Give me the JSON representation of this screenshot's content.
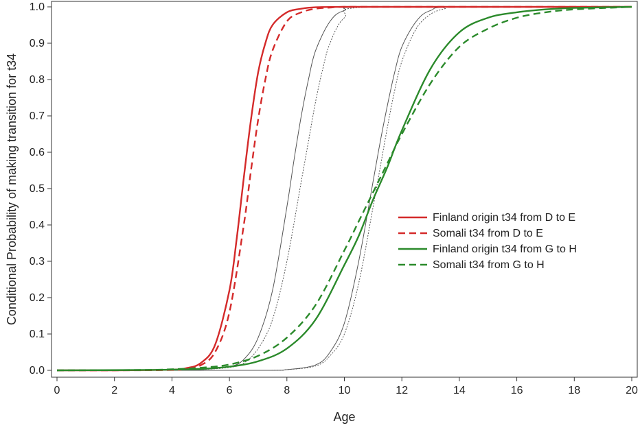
{
  "chart_data": {
    "type": "line",
    "title": "",
    "xlabel": "Age",
    "ylabel": "Conditional Probability of making transition for t34",
    "xlim": [
      0,
      20
    ],
    "ylim": [
      0,
      1
    ],
    "xticks": [
      "0",
      "2",
      "4",
      "6",
      "8",
      "10",
      "12",
      "14",
      "16",
      "18",
      "20"
    ],
    "yticks": [
      "0.0",
      "0.1",
      "0.2",
      "0.3",
      "0.4",
      "0.5",
      "0.6",
      "0.7",
      "0.8",
      "0.9",
      "1.0"
    ],
    "legend_position": "center-right",
    "series": [
      {
        "name": "Finland origin t34 from D to E",
        "color": "#d42a2a",
        "dash": "solid",
        "x": [
          0,
          2,
          4,
          4.5,
          5,
          5.5,
          6,
          6.25,
          6.5,
          6.75,
          7,
          7.25,
          7.5,
          8,
          8.5,
          9,
          10,
          12,
          20
        ],
        "y": [
          0,
          0,
          0.002,
          0.006,
          0.02,
          0.07,
          0.22,
          0.36,
          0.53,
          0.69,
          0.82,
          0.9,
          0.95,
          0.985,
          0.995,
          0.999,
          1,
          1,
          1
        ]
      },
      {
        "name": "Somali t34 from D to E",
        "color": "#d42a2a",
        "dash": "dashed",
        "x": [
          0,
          2,
          4,
          4.5,
          5,
          5.5,
          6,
          6.5,
          6.75,
          7,
          7.25,
          7.5,
          8,
          8.5,
          9,
          9.5,
          10,
          12,
          20
        ],
        "y": [
          0,
          0,
          0.001,
          0.004,
          0.014,
          0.05,
          0.16,
          0.4,
          0.55,
          0.69,
          0.8,
          0.88,
          0.96,
          0.985,
          0.995,
          0.998,
          1,
          1,
          1
        ]
      },
      {
        "name": "Finland origin t34 from G to H",
        "color": "#2b8a2b",
        "dash": "solid",
        "x": [
          0,
          3,
          4,
          5,
          6,
          7,
          8,
          9,
          10,
          10.5,
          11,
          11.5,
          12,
          13,
          14,
          15,
          16,
          17,
          18,
          20
        ],
        "y": [
          0,
          0.001,
          0.002,
          0.004,
          0.01,
          0.025,
          0.06,
          0.14,
          0.29,
          0.37,
          0.47,
          0.56,
          0.66,
          0.83,
          0.93,
          0.97,
          0.985,
          0.993,
          0.997,
          1
        ]
      },
      {
        "name": "Somali t34 from G to H",
        "color": "#2b8a2b",
        "dash": "dashed",
        "x": [
          0,
          3,
          4,
          5,
          6,
          7,
          8,
          9,
          10,
          10.5,
          11,
          11.5,
          12,
          13,
          14,
          15,
          16,
          17,
          18,
          20
        ],
        "y": [
          0,
          0.001,
          0.003,
          0.007,
          0.016,
          0.04,
          0.09,
          0.18,
          0.33,
          0.41,
          0.49,
          0.57,
          0.65,
          0.79,
          0.89,
          0.94,
          0.97,
          0.985,
          0.993,
          1
        ]
      }
    ],
    "reference_curves": [
      {
        "color": "#555555",
        "dash": "solid",
        "x": [
          0,
          4,
          5,
          6,
          6.5,
          7,
          7.5,
          8,
          8.25,
          8.5,
          8.75,
          9,
          9.5,
          10,
          11,
          20
        ],
        "y": [
          0,
          0,
          0.002,
          0.01,
          0.03,
          0.09,
          0.22,
          0.45,
          0.58,
          0.7,
          0.8,
          0.88,
          0.96,
          0.99,
          1,
          1
        ]
      },
      {
        "color": "#555555",
        "dash": "dotted",
        "x": [
          0,
          4,
          5,
          6,
          6.5,
          7,
          7.5,
          8,
          8.5,
          8.75,
          9,
          9.25,
          9.5,
          10,
          11,
          20
        ],
        "y": [
          0,
          0,
          0.002,
          0.008,
          0.02,
          0.06,
          0.14,
          0.3,
          0.52,
          0.63,
          0.74,
          0.83,
          0.9,
          0.97,
          1,
          1
        ]
      },
      {
        "color": "#555555",
        "dash": "solid",
        "x": [
          0,
          7,
          8,
          9,
          9.5,
          10,
          10.5,
          11,
          11.25,
          11.5,
          11.75,
          12,
          12.5,
          13,
          14,
          20
        ],
        "y": [
          0,
          0,
          0.002,
          0.015,
          0.05,
          0.13,
          0.3,
          0.52,
          0.63,
          0.73,
          0.82,
          0.89,
          0.96,
          0.99,
          1,
          1
        ]
      },
      {
        "color": "#555555",
        "dash": "dotted",
        "x": [
          0,
          7,
          8,
          9,
          9.5,
          10,
          10.5,
          11,
          11.5,
          11.75,
          12,
          12.5,
          13,
          13.5,
          14,
          20
        ],
        "y": [
          0,
          0,
          0.002,
          0.012,
          0.04,
          0.1,
          0.24,
          0.45,
          0.67,
          0.77,
          0.85,
          0.94,
          0.98,
          0.995,
          1,
          1
        ]
      }
    ]
  }
}
